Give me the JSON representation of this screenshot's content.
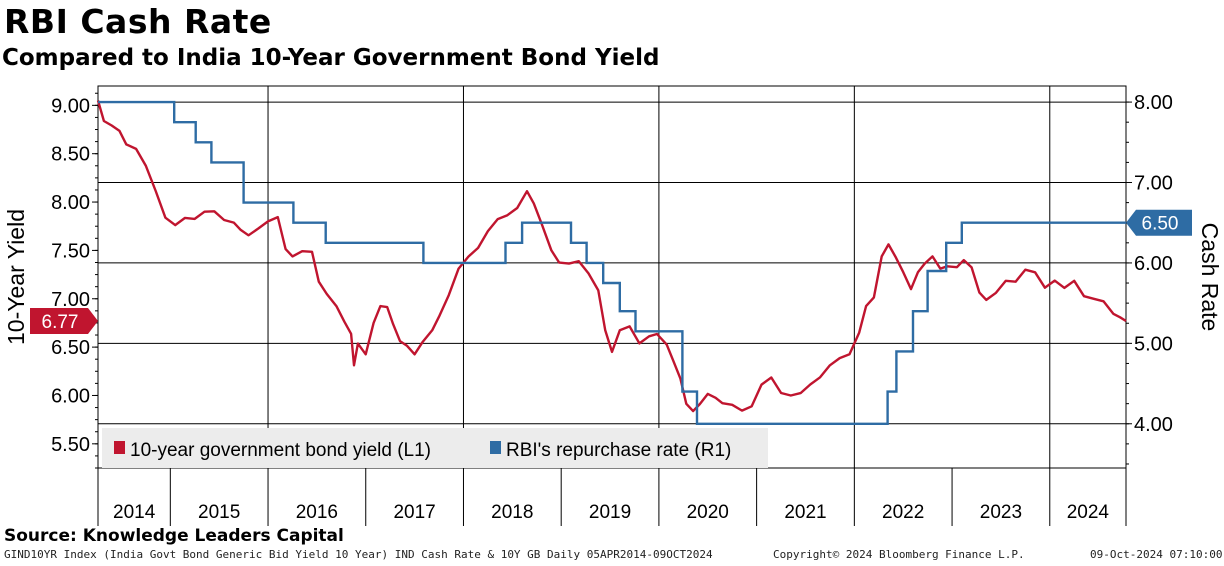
{
  "title": "RBI Cash Rate",
  "subtitle": "Compared to India 10-Year Government Bond Yield",
  "source": "Source: Knowledge Leaders Capital",
  "footer": {
    "left": "GIND10YR Index (India Govt Bond Generic Bid Yield 10 Year) IND Cash Rate & 10Y GB  Daily 05APR2014-09OCT2024",
    "center": "Copyright© 2024 Bloomberg Finance L.P.",
    "right": "09-Oct-2024 07:10:00"
  },
  "colors": {
    "yield": "#c0152f",
    "repo": "#2e6ca4",
    "grid": "#000000",
    "legend_bg": "#ececec"
  },
  "chart_data": {
    "type": "line",
    "title": "RBI Cash Rate",
    "subtitle": "Compared to India 10-Year Government Bond Yield",
    "x_categories": [
      "2014",
      "2015",
      "2016",
      "2017",
      "2018",
      "2019",
      "2020",
      "2021",
      "2022",
      "2023",
      "2024"
    ],
    "x_range": [
      2014.26,
      2024.78
    ],
    "left_axis": {
      "label": "10-Year Yield",
      "ticks": [
        "9.00",
        "8.50",
        "8.00",
        "7.50",
        "7.00",
        "6.50",
        "6.00",
        "5.50"
      ],
      "range": [
        5.25,
        9.2
      ]
    },
    "right_axis": {
      "label": "Cash Rate",
      "ticks": [
        "8.00",
        "7.00",
        "6.00",
        "5.00",
        "4.00"
      ],
      "range": [
        3.45,
        8.2
      ]
    },
    "last_value_labels": {
      "yield": "6.77",
      "repo": "6.50"
    },
    "legend": [
      "10-year government bond yield (L1)",
      "RBI's repurchase rate (R1)"
    ],
    "series": [
      {
        "name": "10-year government bond yield (L1)",
        "axis": "left",
        "points": [
          [
            2014.26,
            9.05
          ],
          [
            2014.32,
            8.85
          ],
          [
            2014.4,
            8.78
          ],
          [
            2014.48,
            8.7
          ],
          [
            2014.55,
            8.62
          ],
          [
            2014.65,
            8.55
          ],
          [
            2014.75,
            8.35
          ],
          [
            2014.85,
            8.15
          ],
          [
            2014.95,
            7.85
          ],
          [
            2015.05,
            7.75
          ],
          [
            2015.15,
            7.8
          ],
          [
            2015.25,
            7.85
          ],
          [
            2015.35,
            7.9
          ],
          [
            2015.45,
            7.88
          ],
          [
            2015.55,
            7.85
          ],
          [
            2015.65,
            7.8
          ],
          [
            2015.72,
            7.7
          ],
          [
            2015.8,
            7.62
          ],
          [
            2015.9,
            7.75
          ],
          [
            2016.0,
            7.8
          ],
          [
            2016.1,
            7.82
          ],
          [
            2016.18,
            7.55
          ],
          [
            2016.25,
            7.45
          ],
          [
            2016.35,
            7.48
          ],
          [
            2016.45,
            7.45
          ],
          [
            2016.52,
            7.2
          ],
          [
            2016.6,
            7.05
          ],
          [
            2016.7,
            6.9
          ],
          [
            2016.78,
            6.8
          ],
          [
            2016.85,
            6.65
          ],
          [
            2016.88,
            6.3
          ],
          [
            2016.92,
            6.5
          ],
          [
            2017.0,
            6.45
          ],
          [
            2017.08,
            6.75
          ],
          [
            2017.15,
            6.9
          ],
          [
            2017.22,
            6.95
          ],
          [
            2017.28,
            6.75
          ],
          [
            2017.35,
            6.55
          ],
          [
            2017.42,
            6.48
          ],
          [
            2017.5,
            6.45
          ],
          [
            2017.58,
            6.55
          ],
          [
            2017.68,
            6.65
          ],
          [
            2017.75,
            6.85
          ],
          [
            2017.85,
            7.05
          ],
          [
            2017.95,
            7.3
          ],
          [
            2018.05,
            7.4
          ],
          [
            2018.15,
            7.55
          ],
          [
            2018.25,
            7.7
          ],
          [
            2018.35,
            7.8
          ],
          [
            2018.45,
            7.9
          ],
          [
            2018.55,
            7.95
          ],
          [
            2018.65,
            8.1
          ],
          [
            2018.72,
            7.95
          ],
          [
            2018.8,
            7.8
          ],
          [
            2018.9,
            7.5
          ],
          [
            2018.98,
            7.35
          ],
          [
            2019.08,
            7.4
          ],
          [
            2019.18,
            7.4
          ],
          [
            2019.28,
            7.25
          ],
          [
            2019.38,
            7.05
          ],
          [
            2019.45,
            6.7
          ],
          [
            2019.52,
            6.45
          ],
          [
            2019.6,
            6.65
          ],
          [
            2019.7,
            6.75
          ],
          [
            2019.8,
            6.55
          ],
          [
            2019.9,
            6.6
          ],
          [
            2019.98,
            6.6
          ],
          [
            2020.08,
            6.55
          ],
          [
            2020.15,
            6.35
          ],
          [
            2020.22,
            6.15
          ],
          [
            2020.28,
            5.95
          ],
          [
            2020.35,
            5.85
          ],
          [
            2020.42,
            5.9
          ],
          [
            2020.5,
            5.98
          ],
          [
            2020.58,
            6.0
          ],
          [
            2020.65,
            5.92
          ],
          [
            2020.75,
            5.88
          ],
          [
            2020.85,
            5.88
          ],
          [
            2020.95,
            5.9
          ],
          [
            2021.05,
            6.1
          ],
          [
            2021.15,
            6.15
          ],
          [
            2021.25,
            6.05
          ],
          [
            2021.35,
            6.0
          ],
          [
            2021.45,
            6.0
          ],
          [
            2021.55,
            6.15
          ],
          [
            2021.65,
            6.2
          ],
          [
            2021.75,
            6.3
          ],
          [
            2021.85,
            6.35
          ],
          [
            2021.95,
            6.45
          ],
          [
            2022.05,
            6.65
          ],
          [
            2022.12,
            6.9
          ],
          [
            2022.2,
            7.05
          ],
          [
            2022.28,
            7.45
          ],
          [
            2022.35,
            7.55
          ],
          [
            2022.42,
            7.4
          ],
          [
            2022.5,
            7.3
          ],
          [
            2022.58,
            7.1
          ],
          [
            2022.65,
            7.25
          ],
          [
            2022.72,
            7.4
          ],
          [
            2022.8,
            7.45
          ],
          [
            2022.88,
            7.3
          ],
          [
            2022.95,
            7.3
          ],
          [
            2023.05,
            7.35
          ],
          [
            2023.12,
            7.4
          ],
          [
            2023.2,
            7.3
          ],
          [
            2023.28,
            7.1
          ],
          [
            2023.35,
            7.0
          ],
          [
            2023.45,
            7.05
          ],
          [
            2023.55,
            7.15
          ],
          [
            2023.65,
            7.2
          ],
          [
            2023.75,
            7.3
          ],
          [
            2023.85,
            7.25
          ],
          [
            2023.95,
            7.15
          ],
          [
            2024.05,
            7.2
          ],
          [
            2024.15,
            7.1
          ],
          [
            2024.25,
            7.15
          ],
          [
            2024.35,
            7.05
          ],
          [
            2024.45,
            7.0
          ],
          [
            2024.55,
            6.95
          ],
          [
            2024.65,
            6.88
          ],
          [
            2024.72,
            6.82
          ],
          [
            2024.78,
            6.77
          ]
        ]
      },
      {
        "name": "RBI's repurchase rate (R1)",
        "axis": "right",
        "steps": [
          [
            2014.26,
            8.0
          ],
          [
            2015.04,
            7.75
          ],
          [
            2015.26,
            7.5
          ],
          [
            2015.42,
            7.25
          ],
          [
            2015.75,
            6.75
          ],
          [
            2016.26,
            6.5
          ],
          [
            2016.59,
            6.25
          ],
          [
            2017.59,
            6.0
          ],
          [
            2018.43,
            6.25
          ],
          [
            2018.6,
            6.5
          ],
          [
            2019.1,
            6.25
          ],
          [
            2019.26,
            6.0
          ],
          [
            2019.43,
            5.75
          ],
          [
            2019.6,
            5.4
          ],
          [
            2019.76,
            5.15
          ],
          [
            2020.24,
            4.4
          ],
          [
            2020.39,
            4.0
          ],
          [
            2022.34,
            4.4
          ],
          [
            2022.43,
            4.9
          ],
          [
            2022.6,
            5.4
          ],
          [
            2022.75,
            5.9
          ],
          [
            2022.94,
            6.25
          ],
          [
            2023.1,
            6.5
          ],
          [
            2024.78,
            6.5
          ]
        ]
      }
    ]
  }
}
